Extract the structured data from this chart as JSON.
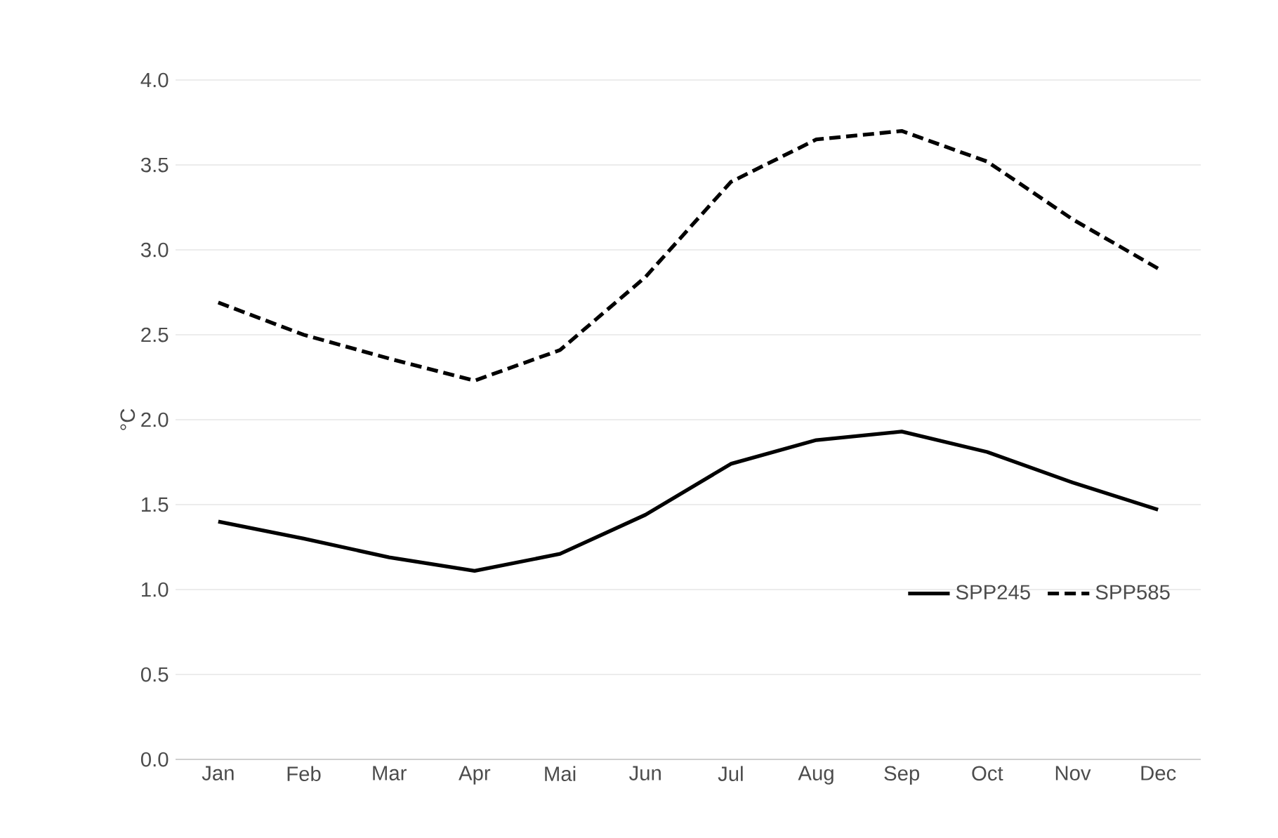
{
  "chart_data": {
    "type": "line",
    "ylabel": "°C",
    "categories": [
      "Jan",
      "Feb",
      "Mar",
      "Apr",
      "Mai",
      "Jun",
      "Jul",
      "Aug",
      "Sep",
      "Oct",
      "Nov",
      "Dec"
    ],
    "series": [
      {
        "name": "SPP245",
        "color": "#000000",
        "line_style": "solid",
        "values": [
          1.4,
          1.3,
          1.19,
          1.11,
          1.21,
          1.44,
          1.74,
          1.88,
          1.93,
          1.81,
          1.63,
          1.47
        ]
      },
      {
        "name": "SPP585",
        "color": "#000000",
        "line_style": "dashed",
        "values": [
          2.69,
          2.5,
          2.36,
          2.23,
          2.41,
          2.84,
          3.4,
          3.65,
          3.7,
          3.52,
          3.18,
          2.89
        ]
      }
    ],
    "ylim": [
      0,
      4
    ],
    "yticks": [
      {
        "value": 0,
        "label": "0.0"
      },
      {
        "value": 0.5,
        "label": "0.5"
      },
      {
        "value": 1,
        "label": "1.0"
      },
      {
        "value": 1.5,
        "label": "1.5"
      },
      {
        "value": 2,
        "label": "2.0"
      },
      {
        "value": 2.5,
        "label": "2.5"
      },
      {
        "value": 3,
        "label": "3.0"
      },
      {
        "value": 3.5,
        "label": "3.5"
      },
      {
        "value": 4,
        "label": "4.0"
      }
    ],
    "grid": "y",
    "legend": "bottom right",
    "marker": "none"
  }
}
